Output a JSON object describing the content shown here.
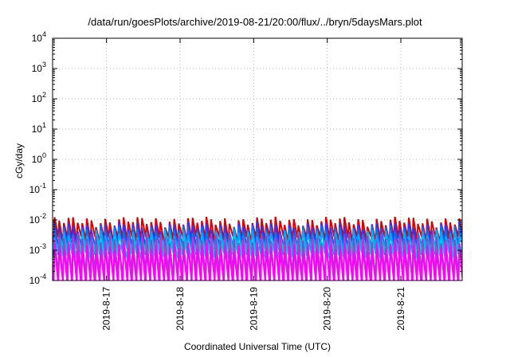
{
  "chart_data": {
    "type": "line",
    "title": "/data/run/goesPlots/archive/2019-08-21/20:00/flux/../bryn/5daysMars.plot",
    "xlabel": "Coordinated Universal Time (UTC)",
    "ylabel": "cGy/day",
    "y_scale": "log",
    "ylim": [
      0.0001,
      10000
    ],
    "y_ticks": [
      {
        "value": 0.0001,
        "base": "10",
        "exp": "-4"
      },
      {
        "value": 0.001,
        "base": "10",
        "exp": "-3"
      },
      {
        "value": 0.01,
        "base": "10",
        "exp": "-2"
      },
      {
        "value": 0.1,
        "base": "10",
        "exp": "-1"
      },
      {
        "value": 1,
        "base": "10",
        "exp": "0"
      },
      {
        "value": 10,
        "base": "10",
        "exp": "1"
      },
      {
        "value": 100,
        "base": "10",
        "exp": "2"
      },
      {
        "value": 1000,
        "base": "10",
        "exp": "3"
      },
      {
        "value": 10000,
        "base": "10",
        "exp": "4"
      }
    ],
    "x_start": "2019-08-16 06:25",
    "x_end": "2019-08-21 20:00",
    "x_ticks": [
      {
        "label": "2019-8-17",
        "value": "2019-08-17 00:00"
      },
      {
        "label": "2019-8-18",
        "value": "2019-08-18 00:00"
      },
      {
        "label": "2019-8-19",
        "value": "2019-08-19 00:00"
      },
      {
        "label": "2019-8-20",
        "value": "2019-08-20 00:00"
      },
      {
        "label": "2019-8-21",
        "value": "2019-08-21 00:00"
      }
    ],
    "grid": true,
    "legend": "none",
    "sawtooth": {
      "period_hours": 1.5,
      "phase_hours": 0.66,
      "decay_fraction": 0.8
    },
    "series": [
      {
        "color": "#dd0000",
        "peak": 0.0093,
        "trough": 0.0023
      },
      {
        "color": "#3333ff",
        "peak": 0.0063,
        "trough": 0.0012
      },
      {
        "color": "#0077ee",
        "peak": 0.0048,
        "trough": 0.0009
      },
      {
        "color": "#00aaff",
        "peak": 0.0035,
        "trough": 0.0011
      },
      {
        "color": "#00ccdd",
        "peak": 0.0024,
        "trough": 0.0007
      },
      {
        "color": "#8844cc",
        "peak": 0.0026,
        "trough": 0.00012
      },
      {
        "color": "#cc33cc",
        "peak": 0.0019,
        "trough": 0.0001
      },
      {
        "color": "#ff00ff",
        "peak": 0.0013,
        "trough": 8e-05
      }
    ]
  }
}
